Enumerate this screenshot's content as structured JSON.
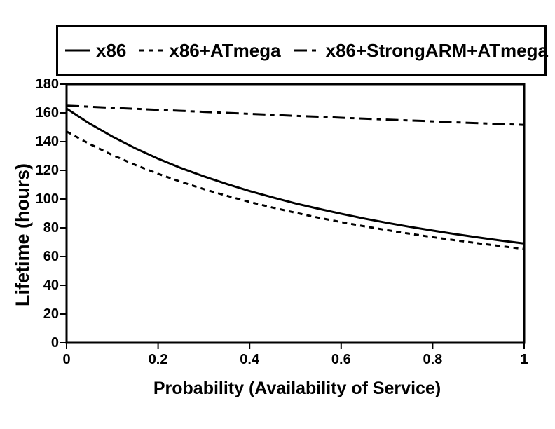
{
  "colors": {
    "ink": "#000000",
    "background": "#ffffff"
  },
  "legend": {
    "items": [
      {
        "label": "x86",
        "line_style": "solid"
      },
      {
        "label": "x86+ATmega",
        "line_style": "dotted"
      },
      {
        "label": "x86+StrongARM+ATmega",
        "line_style": "dashdot"
      }
    ]
  },
  "chart_data": {
    "type": "line",
    "title": "",
    "xlabel": "Probability (Availability of Service)",
    "ylabel": "Lifetime (hours)",
    "xlim": [
      0,
      1
    ],
    "ylim": [
      0,
      180
    ],
    "grid": false,
    "legend_position": "top-outside",
    "xticks": {
      "values": [
        0,
        0.2,
        0.4,
        0.6,
        0.8,
        1
      ],
      "labels": [
        "0",
        "0.2",
        "0.4",
        "0.6",
        "0.8",
        "1"
      ]
    },
    "yticks": {
      "values": [
        0,
        20,
        40,
        60,
        80,
        100,
        120,
        140,
        160,
        180
      ],
      "labels": [
        "0",
        "20",
        "40",
        "60",
        "80",
        "100",
        "120",
        "140",
        "160",
        "180"
      ]
    },
    "x": [
      0,
      0.05,
      0.1,
      0.15,
      0.2,
      0.25,
      0.3,
      0.35,
      0.4,
      0.45,
      0.5,
      0.55,
      0.6,
      0.65,
      0.7,
      0.75,
      0.8,
      0.85,
      0.9,
      0.95,
      1
    ],
    "series": [
      {
        "name": "x86",
        "style": "solid",
        "values": [
          163,
          152.6,
          143.5,
          135.4,
          128.1,
          121.6,
          115.8,
          110.5,
          105.6,
          101.2,
          97,
          93.3,
          89.8,
          86.5,
          83.5,
          80.7,
          78.1,
          75.6,
          73.3,
          71.1,
          69.1
        ]
      },
      {
        "name": "x86+ATmega",
        "style": "dotted",
        "values": [
          147,
          138.4,
          130.7,
          123.8,
          117.6,
          112,
          106.9,
          102.3,
          98,
          94.1,
          90.5,
          87.1,
          84,
          81.1,
          78.4,
          75.9,
          73.5,
          71.3,
          69.2,
          67.2,
          65.3
        ]
      },
      {
        "name": "x86+StrongARM+ATmega",
        "style": "dashdot",
        "values": [
          165,
          164.3,
          163.5,
          162.8,
          162.1,
          161.4,
          160.7,
          160,
          159.3,
          158.6,
          157.9,
          157.3,
          156.6,
          156,
          155.3,
          154.7,
          154.1,
          153.4,
          152.8,
          152.2,
          151.6
        ]
      }
    ]
  }
}
